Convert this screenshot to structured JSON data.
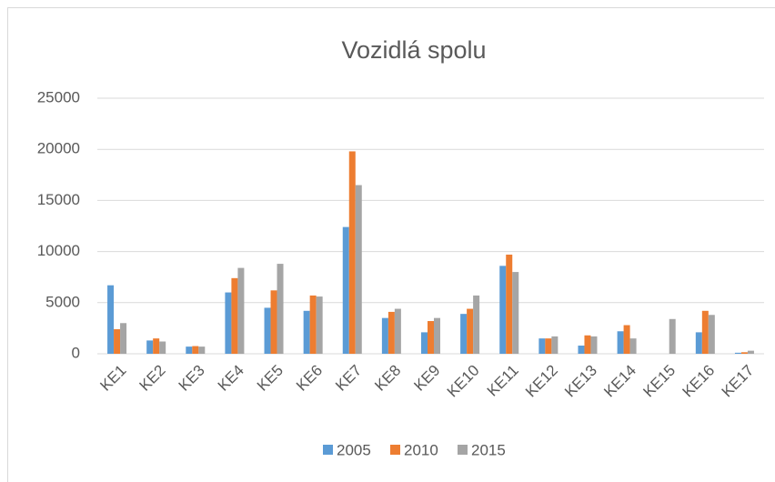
{
  "chart_data": {
    "type": "bar",
    "title": "Vozidlá spolu",
    "categories": [
      "KE1",
      "KE2",
      "KE3",
      "KE4",
      "KE5",
      "KE6",
      "KE7",
      "KE8",
      "KE9",
      "KE10",
      "KE11",
      "KE12",
      "KE13",
      "KE14",
      "KE15",
      "KE16",
      "KE17"
    ],
    "series": [
      {
        "name": "2005",
        "color": "#5b9bd5",
        "values": [
          6700,
          1300,
          700,
          6000,
          4500,
          4200,
          12400,
          3500,
          2100,
          3900,
          8600,
          1500,
          800,
          2200,
          0,
          2100,
          100
        ]
      },
      {
        "name": "2010",
        "color": "#ed7d31",
        "values": [
          2400,
          1500,
          750,
          7400,
          6200,
          5700,
          19800,
          4100,
          3200,
          4400,
          9700,
          1500,
          1800,
          2800,
          0,
          4200,
          150
        ]
      },
      {
        "name": "2015",
        "color": "#a5a5a5",
        "values": [
          3000,
          1200,
          700,
          8400,
          8800,
          5600,
          16500,
          4400,
          3500,
          5700,
          8000,
          1700,
          1700,
          1500,
          3400,
          3800,
          300
        ]
      }
    ],
    "ylim": [
      0,
      25000
    ],
    "yticks": [
      0,
      5000,
      10000,
      15000,
      20000,
      25000
    ],
    "grid": true,
    "legend": "bottom"
  }
}
